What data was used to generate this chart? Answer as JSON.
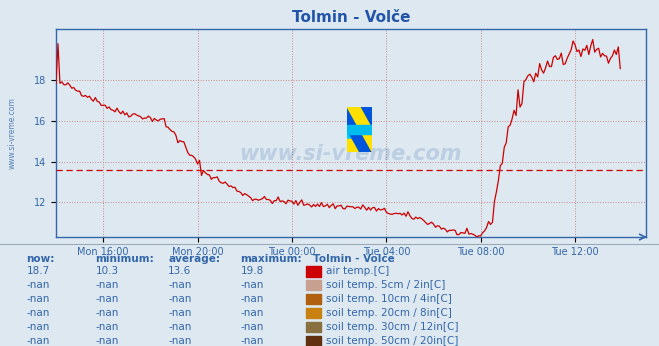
{
  "title": "Tolmin - Volče",
  "title_color": "#2255aa",
  "background_color": "#dde8f0",
  "plot_bg_color": "#dde8f0",
  "line_color": "#cc0000",
  "avg_value": 13.6,
  "xticklabels": [
    "Mon 16:00",
    "Mon 20:00",
    "Tue 00:00",
    "Tue 04:00",
    "Tue 08:00",
    "Tue 12:00"
  ],
  "yticks": [
    12,
    14,
    16,
    18
  ],
  "ylim_min": 10.3,
  "ylim_max": 20.5,
  "xlim_min": 0,
  "xlim_max": 300,
  "grid_color": "#cc8888",
  "tick_color": "#3366aa",
  "spine_color": "#3366aa",
  "legend_title": "Tolmin - Volče",
  "legend_items": [
    {
      "label": "air temp.[C]",
      "color": "#cc0000"
    },
    {
      "label": "soil temp. 5cm / 2in[C]",
      "color": "#c8a090"
    },
    {
      "label": "soil temp. 10cm / 4in[C]",
      "color": "#b06010"
    },
    {
      "label": "soil temp. 20cm / 8in[C]",
      "color": "#c88010"
    },
    {
      "label": "soil temp. 30cm / 12in[C]",
      "color": "#887040"
    },
    {
      "label": "soil temp. 50cm / 20in[C]",
      "color": "#603010"
    }
  ],
  "table_headers": [
    "now:",
    "minimum:",
    "average:",
    "maximum:"
  ],
  "table_rows": [
    [
      "18.7",
      "10.3",
      "13.6",
      "19.8"
    ],
    [
      "-nan",
      "-nan",
      "-nan",
      "-nan"
    ],
    [
      "-nan",
      "-nan",
      "-nan",
      "-nan"
    ],
    [
      "-nan",
      "-nan",
      "-nan",
      "-nan"
    ],
    [
      "-nan",
      "-nan",
      "-nan",
      "-nan"
    ],
    [
      "-nan",
      "-nan",
      "-nan",
      "-nan"
    ]
  ],
  "watermark": "www.si-vreme.com",
  "watermark_color": "#3366aa",
  "ylabel_text": "www.si-vreme.com"
}
